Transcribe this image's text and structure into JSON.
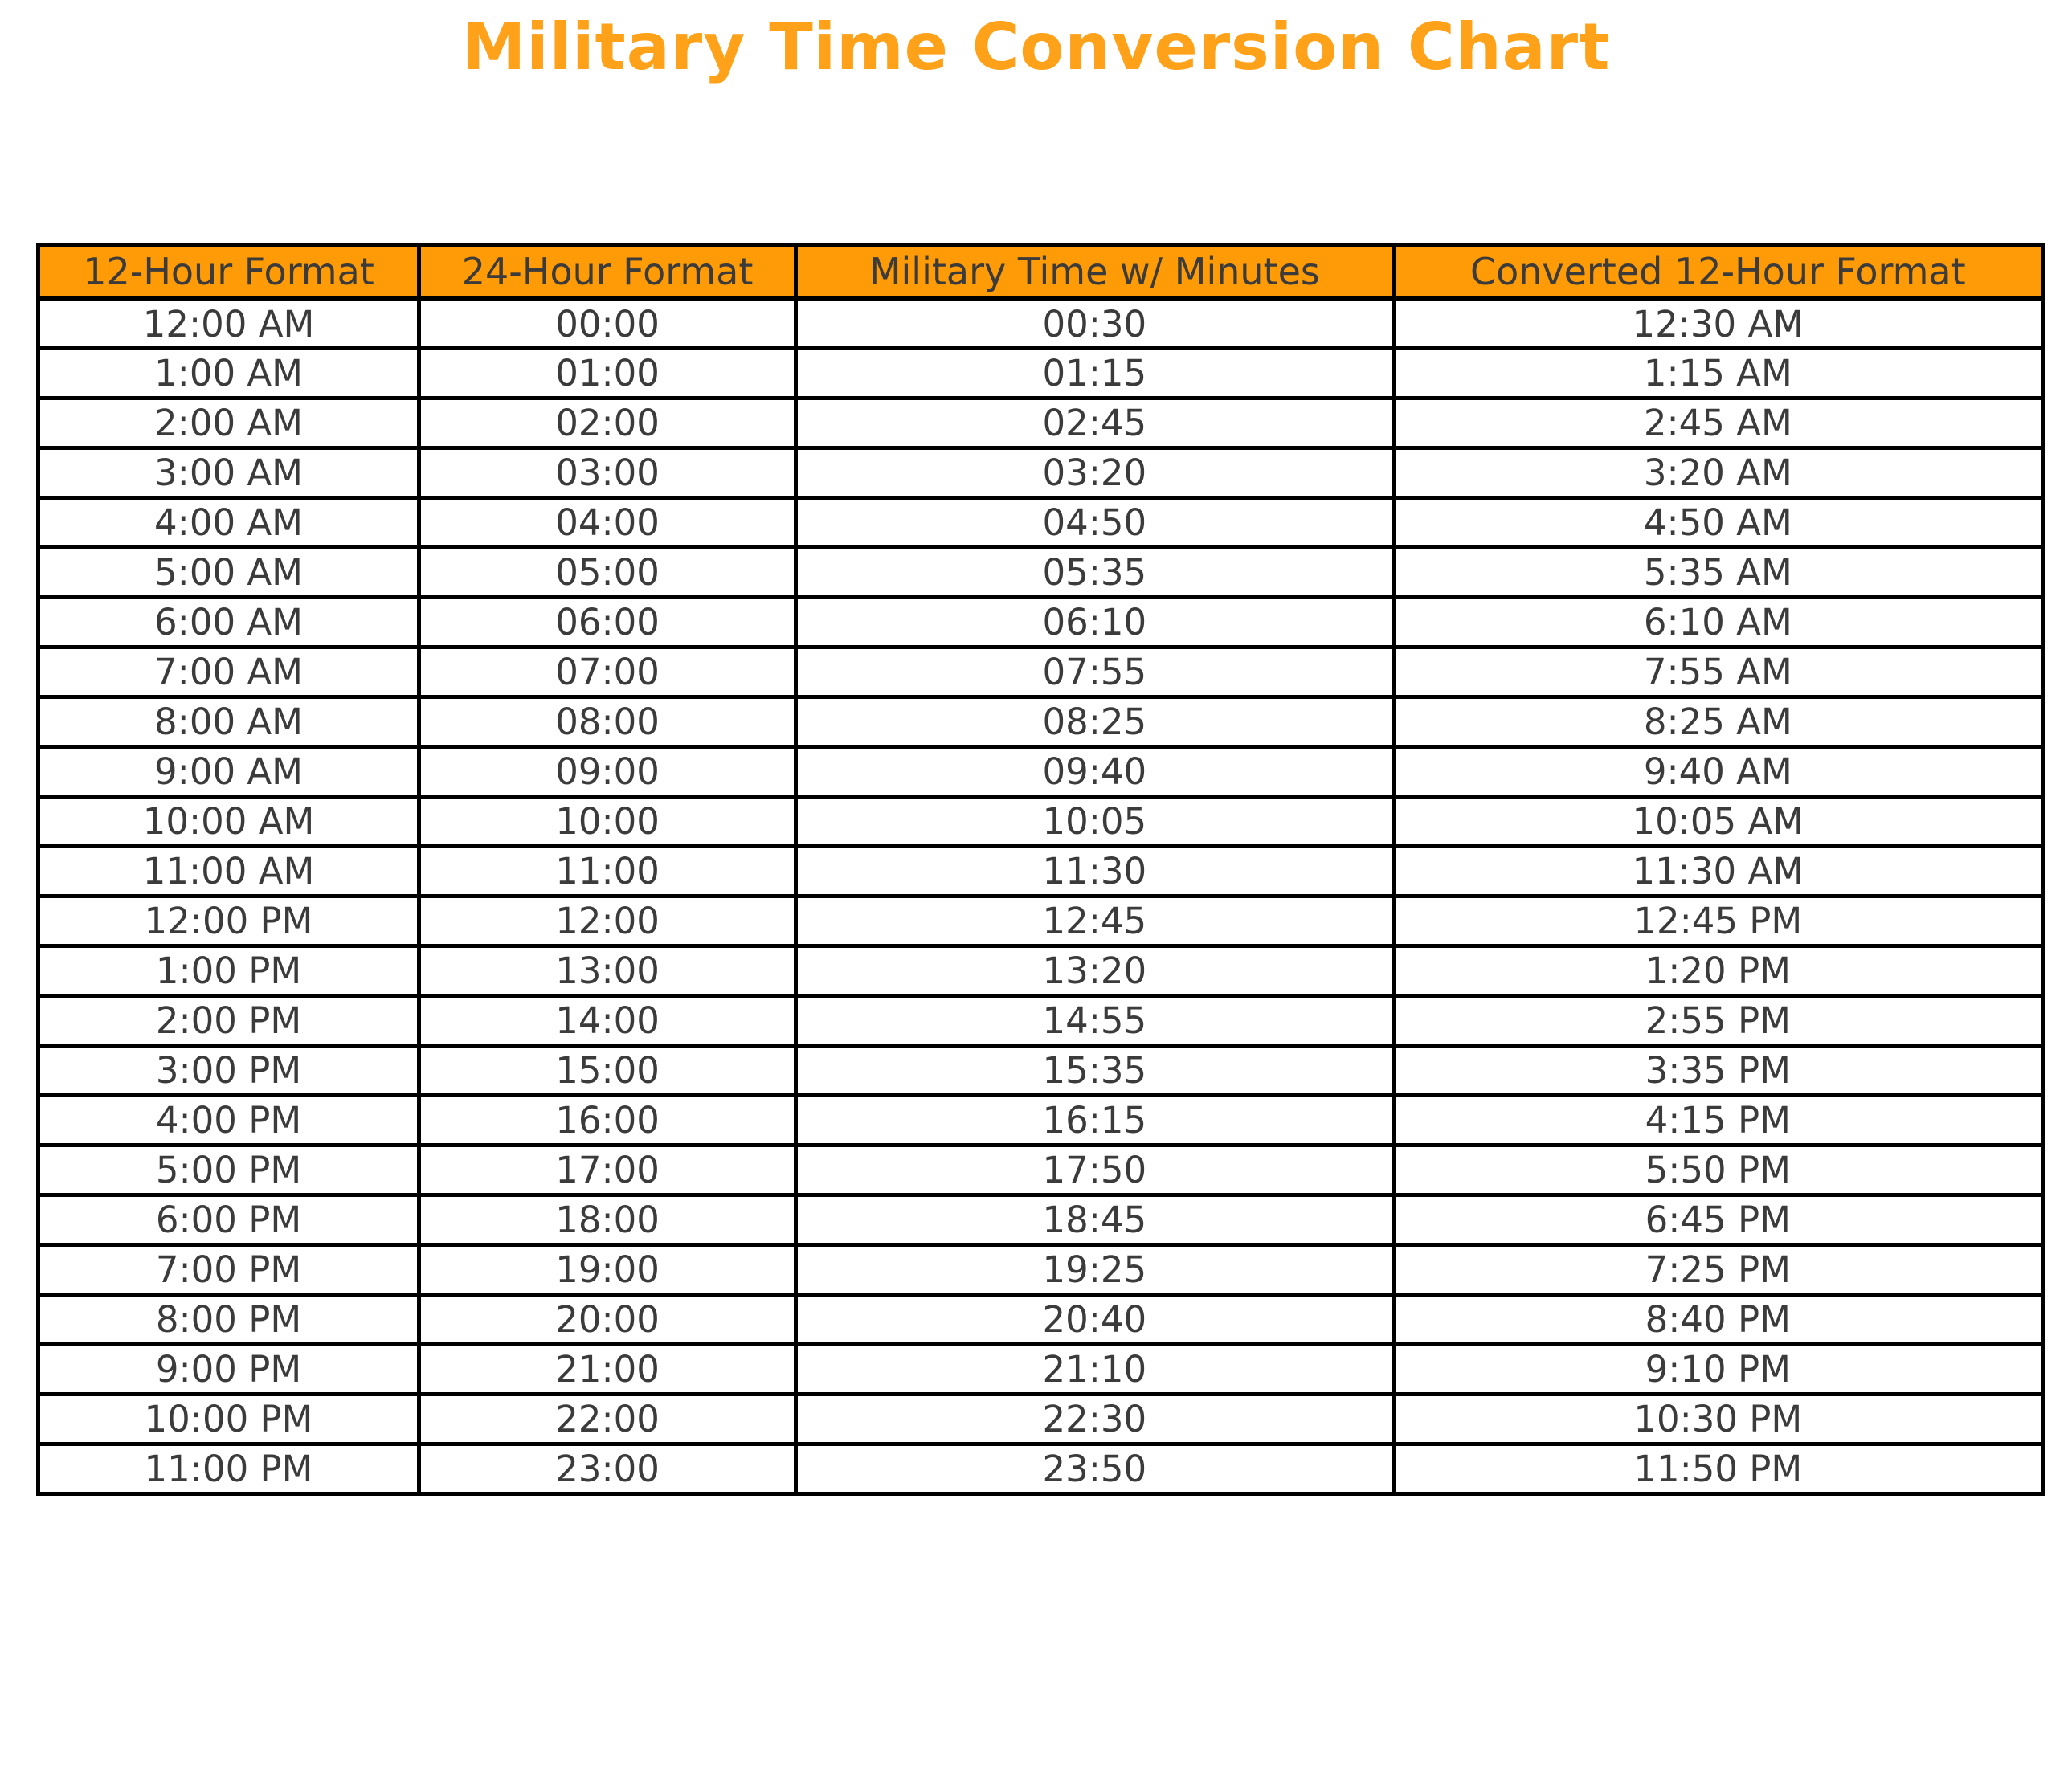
{
  "chart_data": {
    "type": "table",
    "title": "Military Time Conversion Chart",
    "columns": [
      "12-Hour Format",
      "24-Hour Format",
      "Military Time w/ Minutes",
      "Converted 12-Hour Format"
    ],
    "rows": [
      [
        "12:00 AM",
        "00:00",
        "00:30",
        "12:30 AM"
      ],
      [
        "1:00 AM",
        "01:00",
        "01:15",
        "1:15 AM"
      ],
      [
        "2:00 AM",
        "02:00",
        "02:45",
        "2:45 AM"
      ],
      [
        "3:00 AM",
        "03:00",
        "03:20",
        "3:20 AM"
      ],
      [
        "4:00 AM",
        "04:00",
        "04:50",
        "4:50 AM"
      ],
      [
        "5:00 AM",
        "05:00",
        "05:35",
        "5:35 AM"
      ],
      [
        "6:00 AM",
        "06:00",
        "06:10",
        "6:10 AM"
      ],
      [
        "7:00 AM",
        "07:00",
        "07:55",
        "7:55 AM"
      ],
      [
        "8:00 AM",
        "08:00",
        "08:25",
        "8:25 AM"
      ],
      [
        "9:00 AM",
        "09:00",
        "09:40",
        "9:40 AM"
      ],
      [
        "10:00 AM",
        "10:00",
        "10:05",
        "10:05 AM"
      ],
      [
        "11:00 AM",
        "11:00",
        "11:30",
        "11:30 AM"
      ],
      [
        "12:00 PM",
        "12:00",
        "12:45",
        "12:45 PM"
      ],
      [
        "1:00 PM",
        "13:00",
        "13:20",
        "1:20 PM"
      ],
      [
        "2:00 PM",
        "14:00",
        "14:55",
        "2:55 PM"
      ],
      [
        "3:00 PM",
        "15:00",
        "15:35",
        "3:35 PM"
      ],
      [
        "4:00 PM",
        "16:00",
        "16:15",
        "4:15 PM"
      ],
      [
        "5:00 PM",
        "17:00",
        "17:50",
        "5:50 PM"
      ],
      [
        "6:00 PM",
        "18:00",
        "18:45",
        "6:45 PM"
      ],
      [
        "7:00 PM",
        "19:00",
        "19:25",
        "7:25 PM"
      ],
      [
        "8:00 PM",
        "20:00",
        "20:40",
        "8:40 PM"
      ],
      [
        "9:00 PM",
        "21:00",
        "21:10",
        "9:10 PM"
      ],
      [
        "10:00 PM",
        "22:00",
        "22:30",
        "10:30 PM"
      ],
      [
        "11:00 PM",
        "23:00",
        "23:50",
        "11:50 PM"
      ]
    ]
  },
  "style": {
    "title_color": "#FFA219",
    "header_bg": "#FF9B06",
    "text_color": "#3B3B3B",
    "border_color": "#000000",
    "page_bg": "#FFFFFF"
  }
}
